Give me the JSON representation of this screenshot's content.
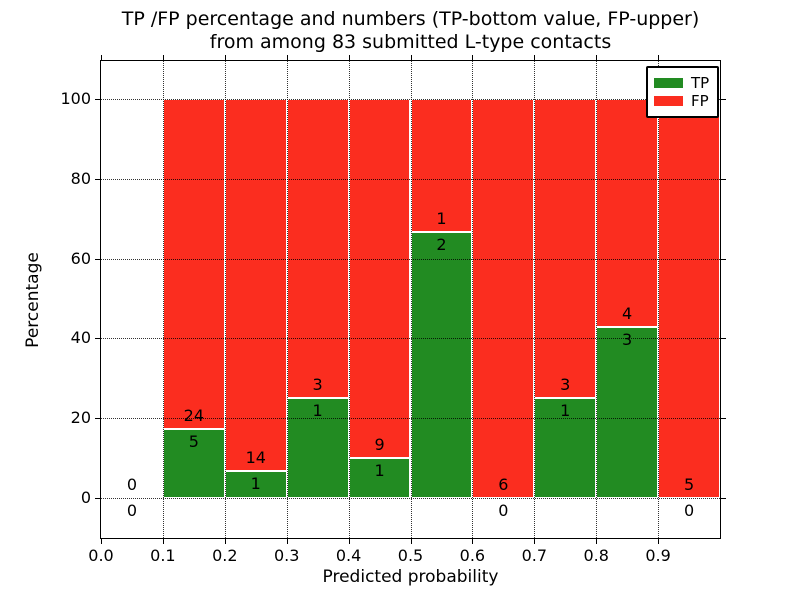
{
  "figure": {
    "title_line1": "TP /FP percentage and numbers (TP-bottom value, FP-upper)",
    "title_line2": "from among 83 submitted L-type contacts"
  },
  "axes": {
    "xlabel": "Predicted probability",
    "ylabel": "Percentage"
  },
  "legend": {
    "items": [
      {
        "label": "TP",
        "color": "#228b22"
      },
      {
        "label": "FP",
        "color": "#fb2d1f"
      }
    ]
  },
  "chart_data": {
    "type": "bar",
    "stacked": true,
    "title": "TP /FP percentage and numbers (TP-bottom value, FP-upper) from among 83 submitted L-type contacts",
    "xlabel": "Predicted probability",
    "ylabel": "Percentage",
    "total_contacts": 83,
    "grid": true,
    "legend_position": "upper right",
    "tp_color": "#228b22",
    "fp_color": "#fb2d1f",
    "bar_edge_color": "#ffffff",
    "xlim": [
      0.0,
      1.0
    ],
    "ylim": [
      -10.5,
      110
    ],
    "yticks": [
      0,
      20,
      40,
      60,
      80,
      100
    ],
    "xticks": [
      0.0,
      0.1,
      0.2,
      0.3,
      0.4,
      0.5,
      0.6,
      0.7,
      0.8,
      0.9
    ],
    "xtick_labels": [
      "0.0",
      "0.1",
      "0.2",
      "0.3",
      "0.4",
      "0.5",
      "0.6",
      "0.7",
      "0.8",
      "0.9"
    ],
    "xgridlines": [
      0.1,
      0.2,
      0.3,
      0.4,
      0.5,
      0.6,
      0.7,
      0.8,
      0.9
    ],
    "bins": [
      {
        "range": [
          0.0,
          0.1
        ],
        "tp_count": 0,
        "fp_count": 0,
        "tp_percent": 0,
        "fp_percent": 0
      },
      {
        "range": [
          0.1,
          0.2
        ],
        "tp_count": 5,
        "fp_count": 24,
        "tp_percent": 17.24,
        "fp_percent": 82.76
      },
      {
        "range": [
          0.2,
          0.3
        ],
        "tp_count": 1,
        "fp_count": 14,
        "tp_percent": 6.67,
        "fp_percent": 93.33
      },
      {
        "range": [
          0.3,
          0.4
        ],
        "tp_count": 1,
        "fp_count": 3,
        "tp_percent": 25.0,
        "fp_percent": 75.0
      },
      {
        "range": [
          0.4,
          0.5
        ],
        "tp_count": 1,
        "fp_count": 9,
        "tp_percent": 10.0,
        "fp_percent": 90.0
      },
      {
        "range": [
          0.5,
          0.6
        ],
        "tp_count": 2,
        "fp_count": 1,
        "tp_percent": 66.67,
        "fp_percent": 33.33
      },
      {
        "range": [
          0.6,
          0.7
        ],
        "tp_count": 0,
        "fp_count": 6,
        "tp_percent": 0,
        "fp_percent": 100.0
      },
      {
        "range": [
          0.7,
          0.8
        ],
        "tp_count": 1,
        "fp_count": 3,
        "tp_percent": 25.0,
        "fp_percent": 75.0
      },
      {
        "range": [
          0.8,
          0.9
        ],
        "tp_count": 3,
        "fp_count": 4,
        "tp_percent": 42.86,
        "fp_percent": 57.14
      },
      {
        "range": [
          0.9,
          1.0
        ],
        "tp_count": 0,
        "fp_count": 5,
        "tp_percent": 0,
        "fp_percent": 100.0
      }
    ]
  }
}
